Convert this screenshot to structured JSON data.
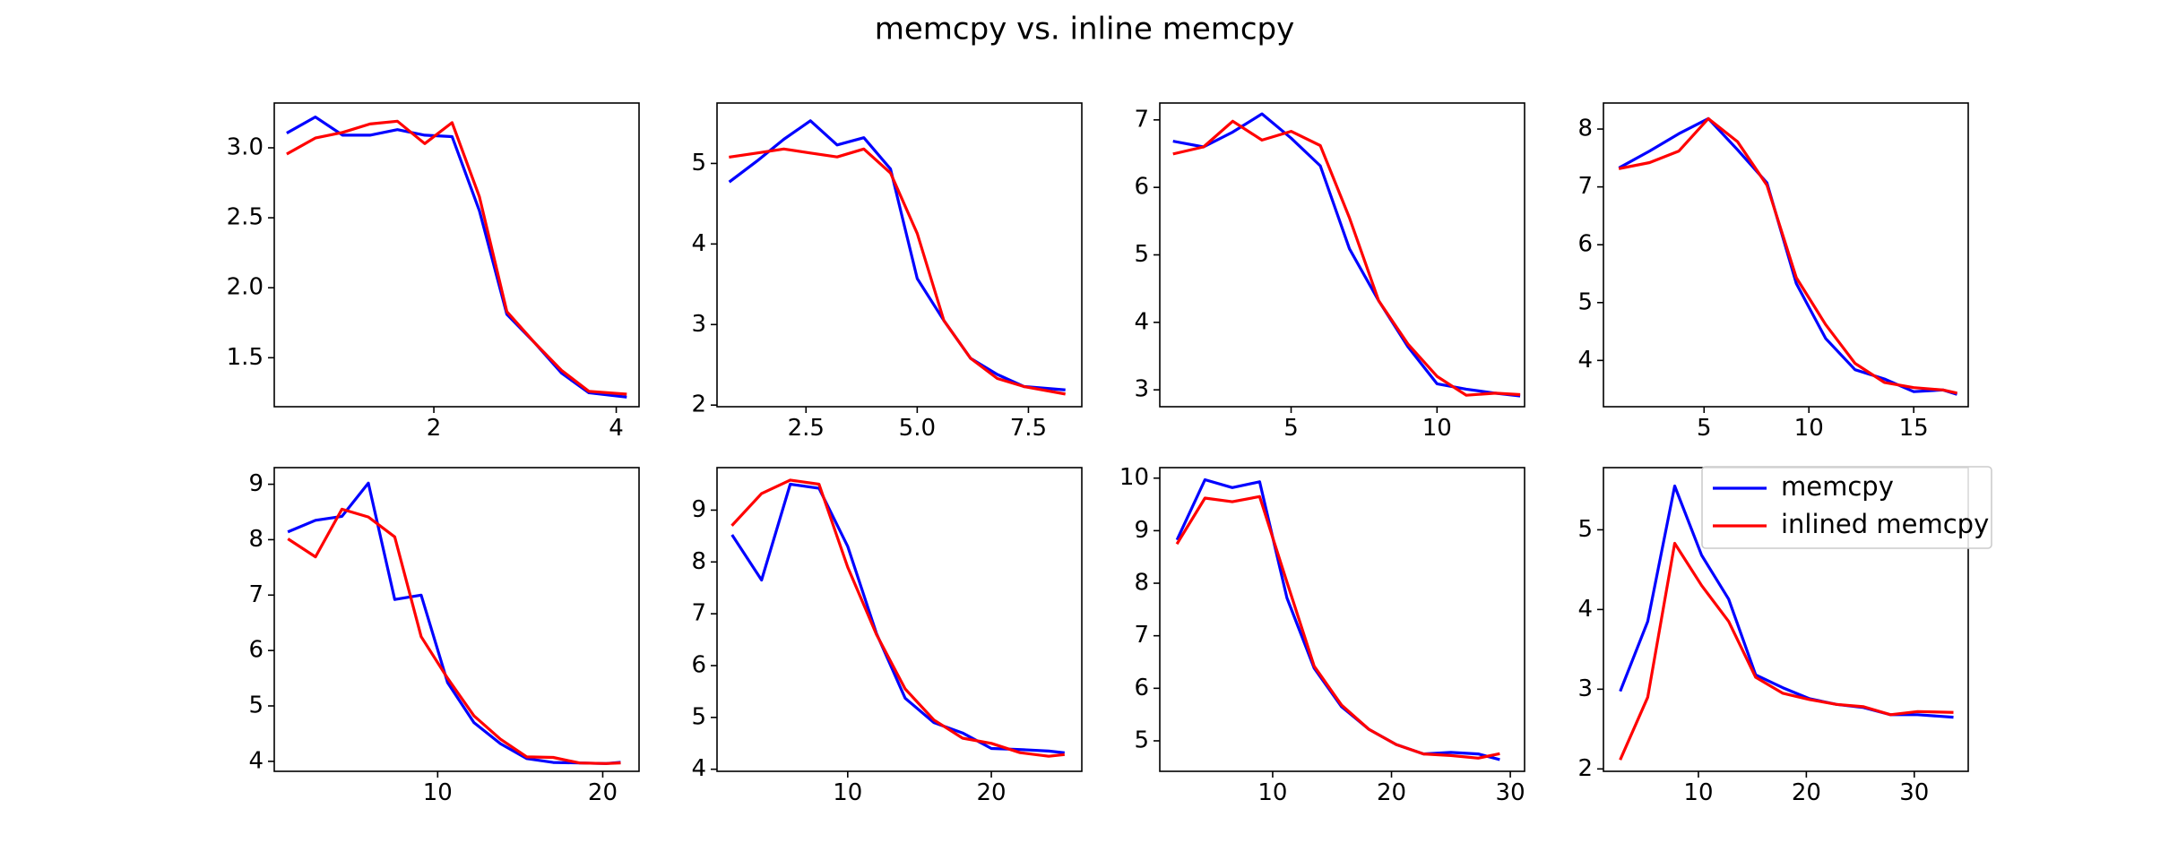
{
  "figure": {
    "title": "memcpy vs. inline memcpy"
  },
  "legend": {
    "placement": "upper right of last subplot",
    "entries": [
      {
        "label": "memcpy",
        "color": "#0000ff"
      },
      {
        "label": "inlined memcpy",
        "color": "#ff0000"
      }
    ]
  },
  "chart_data": [
    {
      "type": "line",
      "xlim": [
        0.25,
        4.25
      ],
      "ylim": [
        1.15,
        3.32
      ],
      "xticks": [
        2,
        4
      ],
      "xtick_labels": [
        "2",
        "4"
      ],
      "yticks": [
        1.5,
        2.0,
        2.5,
        3.0
      ],
      "ytick_labels": [
        "1.5",
        "2.0",
        "2.5",
        "3.0"
      ],
      "series": [
        {
          "name": "memcpy",
          "color": "#0000ff",
          "x": [
            0.4,
            0.7,
            1.0,
            1.3,
            1.6,
            1.9,
            2.2,
            2.5,
            2.8,
            3.1,
            3.4,
            3.7,
            4.1
          ],
          "y": [
            3.11,
            3.22,
            3.09,
            3.09,
            3.13,
            3.09,
            3.08,
            2.55,
            1.81,
            1.61,
            1.39,
            1.25,
            1.22
          ]
        },
        {
          "name": "inlined memcpy",
          "color": "#ff0000",
          "x": [
            0.4,
            0.7,
            1.0,
            1.3,
            1.6,
            1.9,
            2.2,
            2.5,
            2.8,
            3.1,
            3.4,
            3.7,
            4.1
          ],
          "y": [
            2.96,
            3.07,
            3.11,
            3.17,
            3.19,
            3.03,
            3.18,
            2.65,
            1.83,
            1.61,
            1.41,
            1.26,
            1.24
          ]
        }
      ]
    },
    {
      "type": "line",
      "xlim": [
        0.5,
        8.7
      ],
      "ylim": [
        1.98,
        5.75
      ],
      "xticks": [
        2.5,
        5.0,
        7.5
      ],
      "xtick_labels": [
        "2.5",
        "5.0",
        "7.5"
      ],
      "yticks": [
        2,
        3,
        4,
        5
      ],
      "ytick_labels": [
        "2",
        "3",
        "4",
        "5"
      ],
      "series": [
        {
          "name": "memcpy",
          "color": "#0000ff",
          "x": [
            0.8,
            1.4,
            2.0,
            2.6,
            3.2,
            3.8,
            4.4,
            5.0,
            5.6,
            6.2,
            6.8,
            7.4,
            8.3
          ],
          "y": [
            4.78,
            5.03,
            5.3,
            5.53,
            5.23,
            5.32,
            4.93,
            3.57,
            3.05,
            2.58,
            2.38,
            2.23,
            2.19
          ]
        },
        {
          "name": "inlined memcpy",
          "color": "#ff0000",
          "x": [
            0.8,
            1.4,
            2.0,
            2.6,
            3.2,
            3.8,
            4.4,
            5.0,
            5.6,
            6.2,
            6.8,
            7.4,
            8.3
          ],
          "y": [
            5.08,
            5.13,
            5.18,
            5.13,
            5.08,
            5.18,
            4.88,
            4.13,
            3.05,
            2.58,
            2.33,
            2.23,
            2.14
          ]
        }
      ]
    },
    {
      "type": "line",
      "xlim": [
        0.5,
        13.0
      ],
      "ylim": [
        2.75,
        7.25
      ],
      "xticks": [
        5,
        10
      ],
      "xtick_labels": [
        "5",
        "10"
      ],
      "yticks": [
        3,
        4,
        5,
        6,
        7
      ],
      "ytick_labels": [
        "3",
        "4",
        "5",
        "6",
        "7"
      ],
      "series": [
        {
          "name": "memcpy",
          "color": "#0000ff",
          "x": [
            1.0,
            2.0,
            3.0,
            4.0,
            5.0,
            6.0,
            7.0,
            8.0,
            9.0,
            10.0,
            11.0,
            12.0,
            12.8
          ],
          "y": [
            6.68,
            6.6,
            6.82,
            7.09,
            6.73,
            6.32,
            5.09,
            4.32,
            3.64,
            3.09,
            3.01,
            2.95,
            2.91
          ]
        },
        {
          "name": "inlined memcpy",
          "color": "#ff0000",
          "x": [
            1.0,
            2.0,
            3.0,
            4.0,
            5.0,
            6.0,
            7.0,
            8.0,
            9.0,
            10.0,
            11.0,
            12.0,
            12.8
          ],
          "y": [
            6.5,
            6.6,
            6.98,
            6.7,
            6.83,
            6.62,
            5.55,
            4.32,
            3.68,
            3.2,
            2.92,
            2.95,
            2.93
          ]
        }
      ]
    },
    {
      "type": "line",
      "xlim": [
        0.2,
        17.6
      ],
      "ylim": [
        3.2,
        8.45
      ],
      "xticks": [
        5,
        10,
        15
      ],
      "xtick_labels": [
        "5",
        "10",
        "15"
      ],
      "yticks": [
        4,
        5,
        6,
        7,
        8
      ],
      "ytick_labels": [
        "4",
        "5",
        "6",
        "7",
        "8"
      ],
      "series": [
        {
          "name": "memcpy",
          "color": "#0000ff",
          "x": [
            1.0,
            2.4,
            3.8,
            5.2,
            6.6,
            8.0,
            9.4,
            10.8,
            12.2,
            13.6,
            15.0,
            16.4,
            17.0
          ],
          "y": [
            7.34,
            7.62,
            7.92,
            8.18,
            7.64,
            7.07,
            5.33,
            4.38,
            3.84,
            3.68,
            3.46,
            3.49,
            3.42
          ]
        },
        {
          "name": "inlined memcpy",
          "color": "#ff0000",
          "x": [
            1.0,
            2.4,
            3.8,
            5.2,
            6.6,
            8.0,
            9.4,
            10.8,
            12.2,
            13.6,
            15.0,
            16.4,
            17.0
          ],
          "y": [
            7.32,
            7.42,
            7.62,
            8.18,
            7.78,
            7.03,
            5.43,
            4.62,
            3.95,
            3.62,
            3.53,
            3.49,
            3.44
          ]
        }
      ]
    },
    {
      "type": "line",
      "xlim": [
        0.1,
        22.2
      ],
      "ylim": [
        3.82,
        9.3
      ],
      "xticks": [
        10,
        20
      ],
      "xtick_labels": [
        "10",
        "20"
      ],
      "yticks": [
        4,
        5,
        6,
        7,
        8,
        9
      ],
      "ytick_labels": [
        "4",
        "5",
        "6",
        "7",
        "8",
        "9"
      ],
      "series": [
        {
          "name": "memcpy",
          "color": "#0000ff",
          "x": [
            1.0,
            2.6,
            4.2,
            5.8,
            7.4,
            9.0,
            10.6,
            12.2,
            13.8,
            15.4,
            17.0,
            18.6,
            20.2,
            21.0
          ],
          "y": [
            8.15,
            8.35,
            8.42,
            9.02,
            6.92,
            7.0,
            5.42,
            4.7,
            4.32,
            4.05,
            3.98,
            3.97,
            3.96,
            3.98
          ]
        },
        {
          "name": "inlined memcpy",
          "color": "#ff0000",
          "x": [
            1.0,
            2.6,
            4.2,
            5.8,
            7.4,
            9.0,
            10.6,
            12.2,
            13.8,
            15.4,
            17.0,
            18.6,
            20.2,
            21.0
          ],
          "y": [
            8.0,
            7.69,
            8.55,
            8.41,
            8.05,
            6.25,
            5.5,
            4.82,
            4.4,
            4.08,
            4.07,
            3.97,
            3.96,
            3.97
          ]
        }
      ]
    },
    {
      "type": "line",
      "xlim": [
        0.9,
        26.3
      ],
      "ylim": [
        3.96,
        9.82
      ],
      "xticks": [
        10,
        20
      ],
      "xtick_labels": [
        "10",
        "20"
      ],
      "yticks": [
        4,
        5,
        6,
        7,
        8,
        9
      ],
      "ytick_labels": [
        "4",
        "5",
        "6",
        "7",
        "8",
        "9"
      ],
      "series": [
        {
          "name": "memcpy",
          "color": "#0000ff",
          "x": [
            2.0,
            4.0,
            6.0,
            8.0,
            10.0,
            12.0,
            14.0,
            16.0,
            18.0,
            20.0,
            22.0,
            24.0,
            25.0
          ],
          "y": [
            8.5,
            7.65,
            9.5,
            9.42,
            8.3,
            6.62,
            5.37,
            4.9,
            4.7,
            4.4,
            4.38,
            4.35,
            4.32
          ]
        },
        {
          "name": "inlined memcpy",
          "color": "#ff0000",
          "x": [
            2.0,
            4.0,
            6.0,
            8.0,
            10.0,
            12.0,
            14.0,
            16.0,
            18.0,
            20.0,
            22.0,
            24.0,
            25.0
          ],
          "y": [
            8.72,
            9.32,
            9.58,
            9.5,
            7.9,
            6.6,
            5.55,
            4.95,
            4.6,
            4.5,
            4.32,
            4.25,
            4.28
          ]
        }
      ]
    },
    {
      "type": "line",
      "xlim": [
        0.5,
        31.2
      ],
      "ylim": [
        4.42,
        10.2
      ],
      "xticks": [
        10,
        20,
        30
      ],
      "xtick_labels": [
        "10",
        "20",
        "30"
      ],
      "yticks": [
        5,
        6,
        7,
        8,
        9,
        10
      ],
      "ytick_labels": [
        "5",
        "6",
        "7",
        "8",
        "9",
        "10"
      ],
      "series": [
        {
          "name": "memcpy",
          "color": "#0000ff",
          "x": [
            2.0,
            4.3,
            6.6,
            8.9,
            11.2,
            13.5,
            15.8,
            18.1,
            20.4,
            22.7,
            25.0,
            27.3,
            29.0
          ],
          "y": [
            8.85,
            9.97,
            9.82,
            9.93,
            7.72,
            6.38,
            5.65,
            5.22,
            4.93,
            4.75,
            4.78,
            4.75,
            4.65
          ]
        },
        {
          "name": "inlined memcpy",
          "color": "#ff0000",
          "x": [
            2.0,
            4.3,
            6.6,
            8.9,
            11.2,
            13.5,
            15.8,
            18.1,
            20.4,
            22.7,
            25.0,
            27.3,
            29.0
          ],
          "y": [
            8.77,
            9.62,
            9.55,
            9.65,
            8.02,
            6.42,
            5.68,
            5.22,
            4.93,
            4.75,
            4.72,
            4.67,
            4.75
          ]
        }
      ]
    },
    {
      "type": "line",
      "xlim": [
        1.2,
        35.0
      ],
      "ylim": [
        1.97,
        5.78
      ],
      "xticks": [
        10,
        20,
        30
      ],
      "xtick_labels": [
        "10",
        "20",
        "30"
      ],
      "yticks": [
        2,
        3,
        4,
        5
      ],
      "ytick_labels": [
        "2",
        "3",
        "4",
        "5"
      ],
      "series": [
        {
          "name": "memcpy",
          "color": "#0000ff",
          "x": [
            2.8,
            5.3,
            7.8,
            10.3,
            12.8,
            15.3,
            17.8,
            20.3,
            22.8,
            25.3,
            27.8,
            30.3,
            33.5
          ],
          "y": [
            2.99,
            3.85,
            5.55,
            4.68,
            4.13,
            3.18,
            3.02,
            2.88,
            2.81,
            2.77,
            2.68,
            2.68,
            2.65
          ]
        },
        {
          "name": "inlined memcpy",
          "color": "#ff0000",
          "x": [
            2.8,
            5.3,
            7.8,
            10.3,
            12.8,
            15.3,
            17.8,
            20.3,
            22.8,
            25.3,
            27.8,
            30.3,
            33.5
          ],
          "y": [
            2.13,
            2.9,
            4.83,
            4.3,
            3.85,
            3.15,
            2.95,
            2.87,
            2.81,
            2.78,
            2.68,
            2.72,
            2.71
          ]
        }
      ]
    }
  ]
}
